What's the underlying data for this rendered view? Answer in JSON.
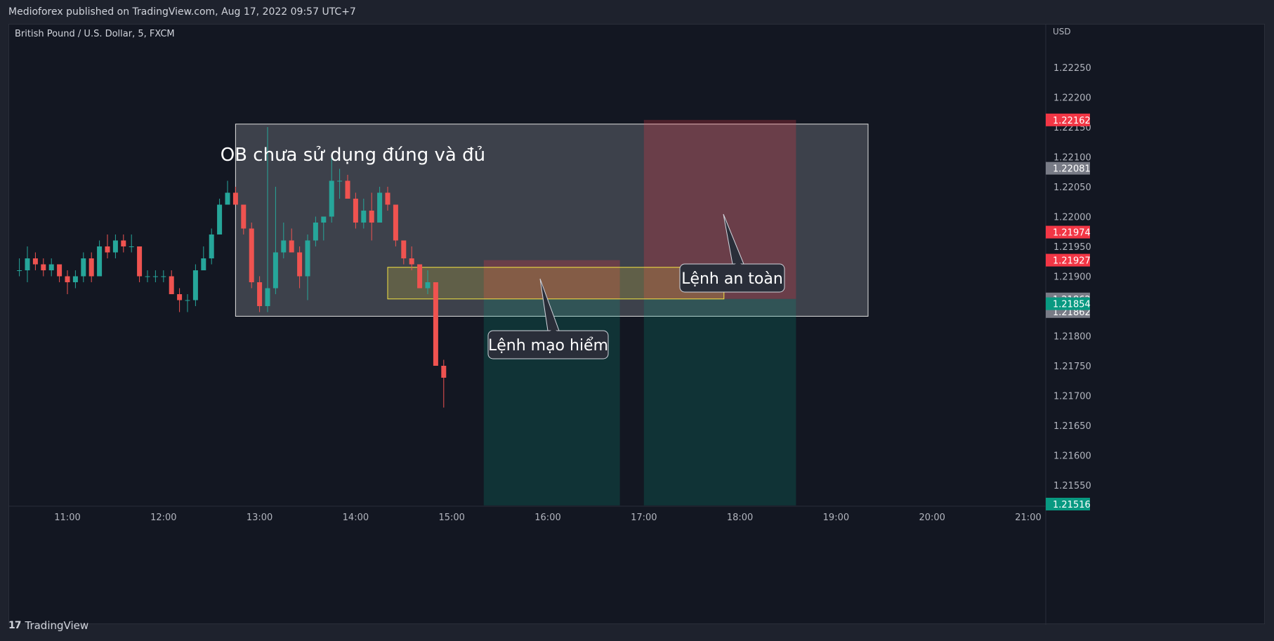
{
  "header": {
    "published_text": "Medioforex published on TradingView.com, Aug 17, 2022 09:57 UTC+7"
  },
  "footer": {
    "brand": "TradingView",
    "logo_glyph": "17"
  },
  "colors": {
    "background": "#131722",
    "bull": "#26a69a",
    "bear": "#ef5350",
    "text": "#d1d4dc",
    "grid_text": "#b2b5be"
  },
  "chart_data": {
    "type": "candlestick",
    "title": "British Pound / U.S. Dollar, 5, FXCM",
    "currency": "USD",
    "x_tick_labels": [
      "11:00",
      "12:00",
      "13:00",
      "14:00",
      "15:00",
      "16:00",
      "17:00",
      "18:00",
      "19:00",
      "20:00",
      "21:00"
    ],
    "y_tick_values": [
      1.2155,
      1.216,
      1.2165,
      1.217,
      1.2175,
      1.218,
      1.219,
      1.2195,
      1.22,
      1.2205,
      1.221,
      1.2215,
      1.222,
      1.2225
    ],
    "y_tick_labels": [
      "1.21550",
      "1.21600",
      "1.21650",
      "1.21700",
      "1.21750",
      "1.21800",
      "1.21900",
      "1.21950",
      "1.22000",
      "1.22050",
      "1.22100",
      "1.22150",
      "1.22200",
      "1.22250"
    ],
    "ylim": [
      1.21516,
      1.2232
    ],
    "price_labels": [
      {
        "value": 1.22162,
        "label": "1.22162",
        "color": "#f23645"
      },
      {
        "value": 1.22081,
        "label": "1.22081",
        "color": "#787b86"
      },
      {
        "value": 1.21974,
        "label": "1.21974",
        "color": "#f23645"
      },
      {
        "value": 1.21927,
        "label": "1.21927",
        "color": "#f23645"
      },
      {
        "value": 1.21862,
        "label": "1.21862",
        "color": "#787b86"
      },
      {
        "value": 1.21862,
        "label": "1.21862",
        "color": "#787b86"
      },
      {
        "value": 1.21854,
        "label": "1.21854",
        "color": "#089981"
      },
      {
        "value": 1.21516,
        "label": "1.21516",
        "color": "#089981"
      }
    ],
    "candles": [
      {
        "t": "10:30",
        "o": 1.2191,
        "h": 1.2193,
        "l": 1.219,
        "c": 1.2191
      },
      {
        "t": "10:35",
        "o": 1.2191,
        "h": 1.2195,
        "l": 1.2189,
        "c": 1.2193
      },
      {
        "t": "10:40",
        "o": 1.2193,
        "h": 1.2194,
        "l": 1.2191,
        "c": 1.2192
      },
      {
        "t": "10:45",
        "o": 1.2192,
        "h": 1.2193,
        "l": 1.219,
        "c": 1.2191
      },
      {
        "t": "10:50",
        "o": 1.2191,
        "h": 1.2193,
        "l": 1.219,
        "c": 1.2192
      },
      {
        "t": "10:55",
        "o": 1.2192,
        "h": 1.2192,
        "l": 1.2189,
        "c": 1.219
      },
      {
        "t": "11:00",
        "o": 1.219,
        "h": 1.2191,
        "l": 1.2187,
        "c": 1.2189
      },
      {
        "t": "11:05",
        "o": 1.2189,
        "h": 1.2191,
        "l": 1.2188,
        "c": 1.219
      },
      {
        "t": "11:10",
        "o": 1.219,
        "h": 1.2194,
        "l": 1.2189,
        "c": 1.2193
      },
      {
        "t": "11:15",
        "o": 1.2193,
        "h": 1.2194,
        "l": 1.2189,
        "c": 1.219
      },
      {
        "t": "11:20",
        "o": 1.219,
        "h": 1.2196,
        "l": 1.219,
        "c": 1.2195
      },
      {
        "t": "11:25",
        "o": 1.2195,
        "h": 1.2197,
        "l": 1.2193,
        "c": 1.2194
      },
      {
        "t": "11:30",
        "o": 1.2194,
        "h": 1.2197,
        "l": 1.2193,
        "c": 1.2196
      },
      {
        "t": "11:35",
        "o": 1.2196,
        "h": 1.2197,
        "l": 1.2194,
        "c": 1.2195
      },
      {
        "t": "11:40",
        "o": 1.2195,
        "h": 1.2197,
        "l": 1.2194,
        "c": 1.2195
      },
      {
        "t": "11:45",
        "o": 1.2195,
        "h": 1.2195,
        "l": 1.2189,
        "c": 1.219
      },
      {
        "t": "11:50",
        "o": 1.219,
        "h": 1.2191,
        "l": 1.2189,
        "c": 1.219
      },
      {
        "t": "11:55",
        "o": 1.219,
        "h": 1.2191,
        "l": 1.2189,
        "c": 1.219
      },
      {
        "t": "12:00",
        "o": 1.219,
        "h": 1.2191,
        "l": 1.2189,
        "c": 1.219
      },
      {
        "t": "12:05",
        "o": 1.219,
        "h": 1.2191,
        "l": 1.2187,
        "c": 1.2187
      },
      {
        "t": "12:10",
        "o": 1.2187,
        "h": 1.2188,
        "l": 1.2184,
        "c": 1.2186
      },
      {
        "t": "12:15",
        "o": 1.2186,
        "h": 1.2187,
        "l": 1.2184,
        "c": 1.2186
      },
      {
        "t": "12:20",
        "o": 1.2186,
        "h": 1.2192,
        "l": 1.2185,
        "c": 1.2191
      },
      {
        "t": "12:25",
        "o": 1.2191,
        "h": 1.2195,
        "l": 1.2191,
        "c": 1.2193
      },
      {
        "t": "12:30",
        "o": 1.2193,
        "h": 1.2198,
        "l": 1.2192,
        "c": 1.2197
      },
      {
        "t": "12:35",
        "o": 1.2197,
        "h": 1.2203,
        "l": 1.2197,
        "c": 1.2202
      },
      {
        "t": "12:40",
        "o": 1.2202,
        "h": 1.2206,
        "l": 1.2202,
        "c": 1.2204
      },
      {
        "t": "12:45",
        "o": 1.2204,
        "h": 1.2205,
        "l": 1.2202,
        "c": 1.2202
      },
      {
        "t": "12:50",
        "o": 1.2202,
        "h": 1.2202,
        "l": 1.2197,
        "c": 1.2198
      },
      {
        "t": "12:55",
        "o": 1.2198,
        "h": 1.2199,
        "l": 1.2188,
        "c": 1.2189
      },
      {
        "t": "13:00",
        "o": 1.2189,
        "h": 1.219,
        "l": 1.2184,
        "c": 1.2185
      },
      {
        "t": "13:05",
        "o": 1.2185,
        "h": 1.2215,
        "l": 1.2184,
        "c": 1.2188
      },
      {
        "t": "13:10",
        "o": 1.2188,
        "h": 1.2205,
        "l": 1.2187,
        "c": 1.2194
      },
      {
        "t": "13:15",
        "o": 1.2194,
        "h": 1.2199,
        "l": 1.2193,
        "c": 1.2196
      },
      {
        "t": "13:20",
        "o": 1.2196,
        "h": 1.2198,
        "l": 1.2194,
        "c": 1.2194
      },
      {
        "t": "13:25",
        "o": 1.2194,
        "h": 1.2195,
        "l": 1.2188,
        "c": 1.219
      },
      {
        "t": "13:30",
        "o": 1.219,
        "h": 1.2197,
        "l": 1.2186,
        "c": 1.2196
      },
      {
        "t": "13:35",
        "o": 1.2196,
        "h": 1.22,
        "l": 1.2195,
        "c": 1.2199
      },
      {
        "t": "13:40",
        "o": 1.2199,
        "h": 1.22,
        "l": 1.2196,
        "c": 1.22
      },
      {
        "t": "13:45",
        "o": 1.22,
        "h": 1.221,
        "l": 1.2199,
        "c": 1.2206
      },
      {
        "t": "13:50",
        "o": 1.2206,
        "h": 1.2208,
        "l": 1.2203,
        "c": 1.2206
      },
      {
        "t": "13:55",
        "o": 1.2206,
        "h": 1.2207,
        "l": 1.2203,
        "c": 1.2203
      },
      {
        "t": "14:00",
        "o": 1.2203,
        "h": 1.2204,
        "l": 1.2198,
        "c": 1.2199
      },
      {
        "t": "14:05",
        "o": 1.2199,
        "h": 1.2203,
        "l": 1.2198,
        "c": 1.2201
      },
      {
        "t": "14:10",
        "o": 1.2201,
        "h": 1.2204,
        "l": 1.2196,
        "c": 1.2199
      },
      {
        "t": "14:15",
        "o": 1.2199,
        "h": 1.2205,
        "l": 1.2199,
        "c": 1.2204
      },
      {
        "t": "14:20",
        "o": 1.2204,
        "h": 1.2205,
        "l": 1.2201,
        "c": 1.2202
      },
      {
        "t": "14:25",
        "o": 1.2202,
        "h": 1.2202,
        "l": 1.2195,
        "c": 1.2196
      },
      {
        "t": "14:30",
        "o": 1.2196,
        "h": 1.2196,
        "l": 1.2192,
        "c": 1.2193
      },
      {
        "t": "14:35",
        "o": 1.2193,
        "h": 1.2195,
        "l": 1.2191,
        "c": 1.2192
      },
      {
        "t": "14:40",
        "o": 1.2192,
        "h": 1.2192,
        "l": 1.2188,
        "c": 1.2188
      },
      {
        "t": "14:45",
        "o": 1.2188,
        "h": 1.2191,
        "l": 1.2187,
        "c": 1.2189
      },
      {
        "t": "14:50",
        "o": 1.2189,
        "h": 1.2189,
        "l": 1.2175,
        "c": 1.2175
      },
      {
        "t": "14:55",
        "o": 1.2175,
        "h": 1.2176,
        "l": 1.2168,
        "c": 1.2173
      }
    ],
    "annotations": {
      "ob_label": "OB chưa sử dụng đúng và đủ",
      "risky_order_label": "Lệnh mạo hiểm",
      "safe_order_label": "Lệnh an toàn",
      "ob_box": {
        "t_start": "12:45",
        "t_end": "19:20",
        "top": 1.22155,
        "bottom": 1.21833
      },
      "yellow_zone": {
        "t_start": "14:20",
        "t_end": "17:50",
        "top": 1.21915,
        "bottom": 1.21862
      },
      "risky_position": {
        "t_start": "15:20",
        "t_end": "16:45",
        "entry": 1.21862,
        "stop": 1.21927,
        "target": 1.21516
      },
      "safe_position": {
        "t_start": "17:00",
        "t_end": "18:35",
        "entry": 1.21862,
        "stop": 1.22162,
        "target": 1.21516
      }
    }
  }
}
